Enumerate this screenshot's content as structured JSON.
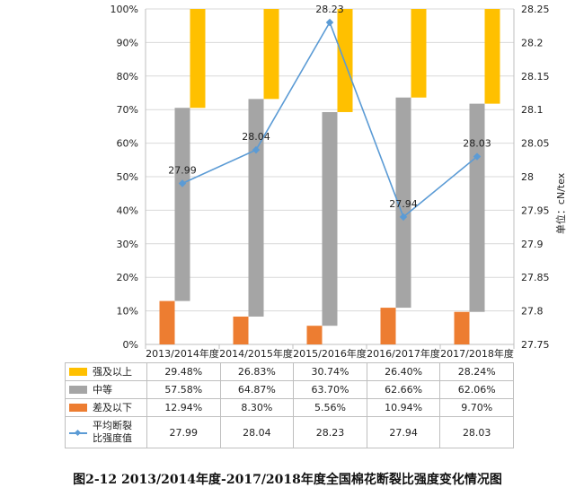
{
  "caption": "图2-12 2013/2014年度-2017/2018年度全国棉花断裂比强度变化情况图",
  "chart_data": {
    "type": "bar",
    "categories": [
      "2013/2014年度",
      "2014/2015年度",
      "2015/2016年度",
      "2016/2017年度",
      "2017/2018年度"
    ],
    "stacked": true,
    "series": [
      {
        "name": "差及以下",
        "color": "#ed7d31",
        "values": [
          12.94,
          8.3,
          5.56,
          10.94,
          9.7
        ],
        "display": [
          "12.94%",
          "8.30%",
          "5.56%",
          "10.94%",
          "9.70%"
        ]
      },
      {
        "name": "中等",
        "color": "#a5a5a5",
        "values": [
          57.58,
          64.87,
          63.7,
          62.66,
          62.06
        ],
        "display": [
          "57.58%",
          "64.87%",
          "63.70%",
          "62.66%",
          "62.06%"
        ]
      },
      {
        "name": "强及以上",
        "color": "#ffc000",
        "values": [
          29.48,
          26.83,
          30.74,
          26.4,
          28.24
        ],
        "display": [
          "29.48%",
          "26.83%",
          "30.74%",
          "26.40%",
          "28.24%"
        ]
      }
    ],
    "line_series": {
      "name": "平均断裂比强度值",
      "name_lines": [
        "平均断裂",
        "比强度值"
      ],
      "color": "#5b9bd5",
      "axis": "right",
      "values": [
        27.99,
        28.04,
        28.23,
        27.94,
        28.03
      ],
      "labels": [
        "27.99",
        "28.04",
        "28.23",
        "27.94",
        "28.03"
      ]
    },
    "y_left": {
      "min": 0,
      "max": 100,
      "ticks": [
        0,
        10,
        20,
        30,
        40,
        50,
        60,
        70,
        80,
        90,
        100
      ],
      "tick_labels": [
        "0%",
        "10%",
        "20%",
        "30%",
        "40%",
        "50%",
        "60%",
        "70%",
        "80%",
        "90%",
        "100%"
      ]
    },
    "y_right": {
      "min": 27.75,
      "max": 28.25,
      "label": "单位：cN/tex",
      "ticks": [
        27.75,
        27.8,
        27.85,
        27.9,
        27.95,
        28,
        28.05,
        28.1,
        28.15,
        28.2,
        28.25
      ],
      "tick_labels": [
        "27.75",
        "27.8",
        "27.85",
        "27.9",
        "27.95",
        "28",
        "28.05",
        "28.1",
        "28.15",
        "28.2",
        "28.25"
      ]
    },
    "grid": true,
    "legend": "data-table-below"
  }
}
